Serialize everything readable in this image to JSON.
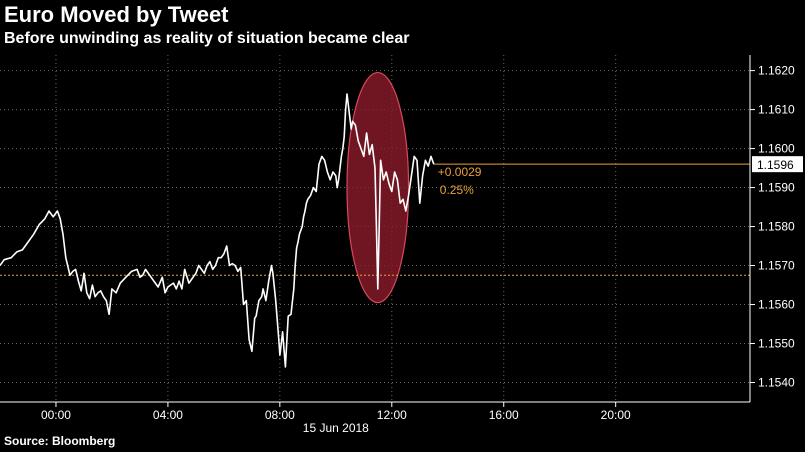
{
  "title": "Euro Moved by Tweet",
  "subtitle": "Before unwinding as reality of situation became clear",
  "source": "Source: Bloomberg",
  "colors": {
    "background": "#000000",
    "line": "#ffffff",
    "grid": "#666666",
    "reference": "#e8a13a",
    "highlight_fill": "#8c1c2a",
    "highlight_stroke": "#d7485a",
    "price_tag_bg": "#ffffff",
    "price_tag_text": "#000000"
  },
  "chart_data": {
    "type": "line",
    "xlabel": "",
    "ylabel": "",
    "date_label": "15 Jun 2018",
    "x_ticks": [
      0,
      4,
      8,
      12,
      16,
      20
    ],
    "x_tick_labels": [
      "00:00",
      "04:00",
      "08:00",
      "12:00",
      "16:00",
      "20:00"
    ],
    "xlim": [
      -2,
      24.8
    ],
    "ylim": [
      1.1535,
      1.1624
    ],
    "y_ticks": [
      1.154,
      1.155,
      1.156,
      1.157,
      1.158,
      1.159,
      1.16,
      1.161,
      1.162
    ],
    "y_tick_labels": [
      "1.1540",
      "1.1550",
      "1.1560",
      "1.1570",
      "1.1580",
      "1.1590",
      "1.1600",
      "1.1610",
      "1.1620"
    ],
    "grid": true,
    "reference_line": 1.15675,
    "last_line": 1.1596,
    "last_value_label": "1.1596",
    "change_label": "+0.0029",
    "change_pct_label": "0.25%",
    "highlight_ellipse": {
      "x_center": 11.5,
      "y_center": 1.159,
      "x_halfwidth": 1.1,
      "y_halfwidth": 0.00295
    },
    "series": [
      {
        "x": [
          -2.0,
          -1.85,
          -1.6,
          -1.4,
          -1.2,
          -1.0,
          -0.8,
          -0.6,
          -0.4,
          -0.25,
          -0.1,
          0.05,
          0.15,
          0.25,
          0.35,
          0.5,
          0.6,
          0.7,
          0.8,
          0.9,
          1.0,
          1.1,
          1.2,
          1.3,
          1.4,
          1.5,
          1.6,
          1.7,
          1.8,
          1.9,
          2.0,
          2.15,
          2.3,
          2.5,
          2.7,
          2.9,
          3.0,
          3.1,
          3.2,
          3.35,
          3.5,
          3.65,
          3.8,
          3.9,
          4.0,
          4.1,
          4.2,
          4.3,
          4.4,
          4.5,
          4.6,
          4.75,
          4.9,
          5.0,
          5.1,
          5.2,
          5.3,
          5.4,
          5.5,
          5.6,
          5.7,
          5.8,
          5.9,
          6.0,
          6.1,
          6.2,
          6.3,
          6.4,
          6.5,
          6.6,
          6.7,
          6.8,
          6.9,
          7.0,
          7.1,
          7.15,
          7.25,
          7.35,
          7.4,
          7.5,
          7.6,
          7.7,
          7.75,
          7.85,
          7.95,
          8.0,
          8.1,
          8.2,
          8.3,
          8.4,
          8.5,
          8.55,
          8.6,
          8.65,
          8.7,
          8.75,
          8.8,
          8.85,
          8.9,
          8.95,
          9.0,
          9.1,
          9.2,
          9.3,
          9.4,
          9.5,
          9.6,
          9.7,
          9.8,
          9.9,
          10.0,
          10.05,
          10.1,
          10.15,
          10.2,
          10.25,
          10.3,
          10.35,
          10.4,
          10.45,
          10.5,
          10.55,
          10.6,
          10.7,
          10.8,
          10.9,
          11.0,
          11.1,
          11.2,
          11.3,
          11.4,
          11.45,
          11.5,
          11.55,
          11.6,
          11.7,
          11.8,
          11.9,
          12.0,
          12.1,
          12.2,
          12.3,
          12.4,
          12.5,
          12.6,
          12.7,
          12.8,
          12.9,
          13.0,
          13.1,
          13.2,
          13.3,
          13.4,
          13.5
        ],
        "y": [
          1.157,
          1.15715,
          1.1572,
          1.15735,
          1.1574,
          1.1576,
          1.1578,
          1.15805,
          1.1582,
          1.1584,
          1.15825,
          1.1584,
          1.1582,
          1.1578,
          1.1572,
          1.15675,
          1.15685,
          1.1569,
          1.1566,
          1.15635,
          1.1568,
          1.1563,
          1.15615,
          1.1565,
          1.1562,
          1.1563,
          1.15635,
          1.1562,
          1.1561,
          1.15575,
          1.1564,
          1.1563,
          1.15655,
          1.1567,
          1.15685,
          1.1569,
          1.1567,
          1.15675,
          1.1569,
          1.15675,
          1.1566,
          1.15645,
          1.1567,
          1.1563,
          1.15645,
          1.1565,
          1.15655,
          1.1564,
          1.1566,
          1.1564,
          1.1569,
          1.15655,
          1.1567,
          1.1568,
          1.157,
          1.1569,
          1.1568,
          1.157,
          1.1571,
          1.1569,
          1.157,
          1.1572,
          1.1572,
          1.1573,
          1.1575,
          1.157,
          1.15705,
          1.157,
          1.15685,
          1.15695,
          1.156,
          1.1561,
          1.1551,
          1.1548,
          1.15565,
          1.1557,
          1.1561,
          1.1562,
          1.1564,
          1.1561,
          1.1566,
          1.157,
          1.1568,
          1.1561,
          1.1552,
          1.1547,
          1.1553,
          1.1544,
          1.1557,
          1.15575,
          1.1564,
          1.157,
          1.15745,
          1.1576,
          1.1578,
          1.1579,
          1.158,
          1.15825,
          1.1584,
          1.1586,
          1.1587,
          1.1588,
          1.159,
          1.1589,
          1.1596,
          1.1598,
          1.1597,
          1.1594,
          1.1592,
          1.1594,
          1.1593,
          1.159,
          1.1592,
          1.1595,
          1.1598,
          1.16,
          1.1603,
          1.161,
          1.1614,
          1.1611,
          1.1608,
          1.1605,
          1.1607,
          1.1606,
          1.1602,
          1.16,
          1.1598,
          1.1604,
          1.15985,
          1.1601,
          1.1595,
          1.158,
          1.1564,
          1.158,
          1.1597,
          1.1592,
          1.1594,
          1.1591,
          1.1589,
          1.1594,
          1.1592,
          1.1586,
          1.1587,
          1.1584,
          1.1588,
          1.1593,
          1.1598,
          1.1597,
          1.1586,
          1.1593,
          1.1597,
          1.15955,
          1.1598,
          1.1596
        ]
      }
    ]
  }
}
